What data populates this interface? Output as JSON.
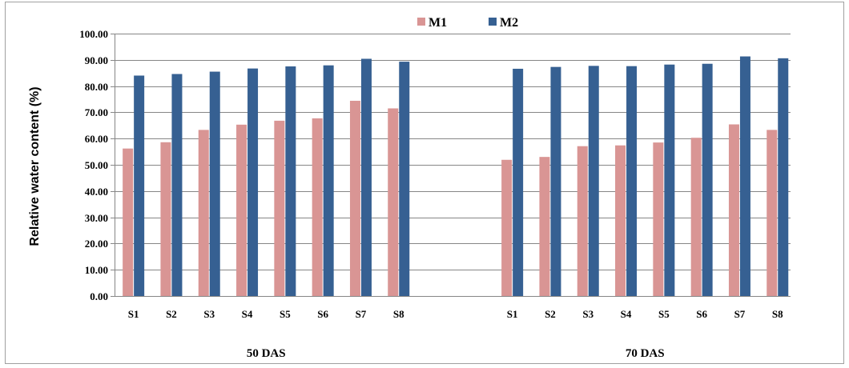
{
  "chart_data": {
    "type": "bar",
    "title": "",
    "xlabel": "",
    "ylabel": "Relative water content (%)",
    "ylim": [
      0,
      100
    ],
    "yticks": [
      "0.00",
      "10.00",
      "20.00",
      "30.00",
      "40.00",
      "50.00",
      "60.00",
      "70.00",
      "80.00",
      "90.00",
      "100.00"
    ],
    "grid": true,
    "legend_position": "top-center",
    "groups": [
      {
        "label": "50 DAS",
        "categories": [
          "S1",
          "S2",
          "S3",
          "S4",
          "S5",
          "S6",
          "S7",
          "S8"
        ],
        "series": [
          {
            "name": "M1",
            "color": "#d99594",
            "values": [
              56.2,
              58.6,
              63.3,
              65.3,
              66.8,
              67.7,
              74.4,
              71.5
            ]
          },
          {
            "name": "M2",
            "color": "#366092",
            "values": [
              84.0,
              84.6,
              85.5,
              86.7,
              87.5,
              87.9,
              90.4,
              89.3
            ]
          }
        ]
      },
      {
        "label": "70 DAS",
        "categories": [
          "S1",
          "S2",
          "S3",
          "S4",
          "S5",
          "S6",
          "S7",
          "S8"
        ],
        "series": [
          {
            "name": "M1",
            "color": "#d99594",
            "values": [
              51.9,
              53.0,
              57.1,
              57.4,
              58.5,
              60.3,
              65.4,
              63.3
            ]
          },
          {
            "name": "M2",
            "color": "#366092",
            "values": [
              86.6,
              87.3,
              87.7,
              87.6,
              88.2,
              88.5,
              91.3,
              90.6
            ]
          }
        ]
      }
    ]
  }
}
